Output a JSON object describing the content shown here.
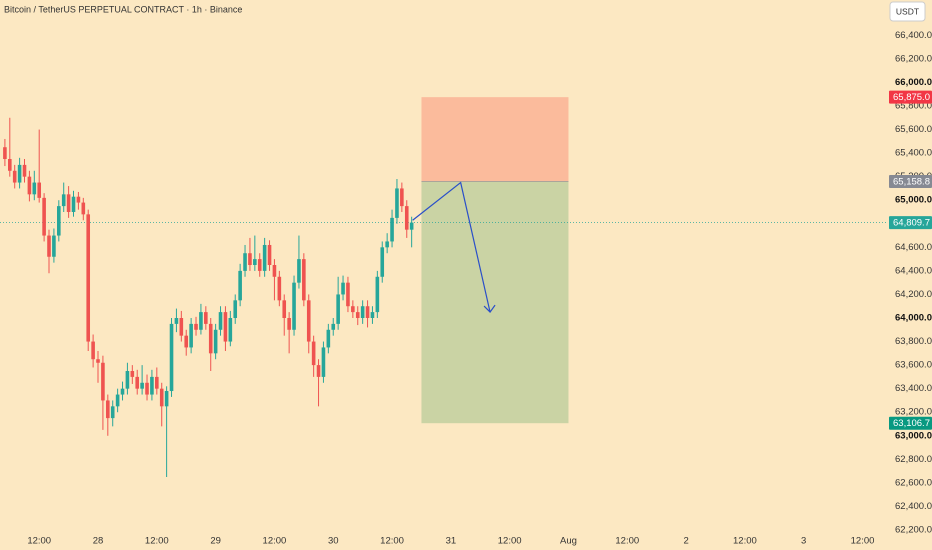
{
  "chart_data": {
    "type": "candlestick",
    "title": "Bitcoin / TetherUS PERPETUAL CONTRACT · 1h · Binance",
    "currency_button": "USDT",
    "up_color": "#26a69a",
    "down_color": "#ef5350",
    "xlim": [
      -20,
      161.2
    ],
    "ylim": [
      62200,
      66700
    ],
    "xticks": [
      {
        "value": -12,
        "label": "12:00"
      },
      {
        "value": 0,
        "label": "28"
      },
      {
        "value": 12,
        "label": "12:00"
      },
      {
        "value": 24,
        "label": "29"
      },
      {
        "value": 36,
        "label": "12:00"
      },
      {
        "value": 48,
        "label": "30"
      },
      {
        "value": 60,
        "label": "12:00"
      },
      {
        "value": 72,
        "label": "31"
      },
      {
        "value": 84,
        "label": "12:00"
      },
      {
        "value": 96,
        "label": "Aug"
      },
      {
        "value": 108,
        "label": "12:00"
      },
      {
        "value": 120,
        "label": "2"
      },
      {
        "value": 132,
        "label": "12:00"
      },
      {
        "value": 144,
        "label": "3"
      },
      {
        "value": 156,
        "label": "12:00"
      }
    ],
    "yticks": [
      {
        "value": 62200,
        "label": "62,200.0"
      },
      {
        "value": 62400,
        "label": "62,400.0"
      },
      {
        "value": 62600,
        "label": "62,600.0"
      },
      {
        "value": 62800,
        "label": "62,800.0"
      },
      {
        "value": 63000,
        "label": "63,000.0"
      },
      {
        "value": 63200,
        "label": "63,200.0"
      },
      {
        "value": 63400,
        "label": "63,400.0"
      },
      {
        "value": 63600,
        "label": "63,600.0"
      },
      {
        "value": 63800,
        "label": "63,800.0"
      },
      {
        "value": 64000,
        "label": "64,000.0"
      },
      {
        "value": 64200,
        "label": "64,200.0"
      },
      {
        "value": 64400,
        "label": "64,400.0"
      },
      {
        "value": 64600,
        "label": "64,600.0"
      },
      {
        "value": 64800,
        "label": "64,800.0"
      },
      {
        "value": 65000,
        "label": "65,000.0"
      },
      {
        "value": 65200,
        "label": "65,200.0"
      },
      {
        "value": 65400,
        "label": "65,400.0"
      },
      {
        "value": 65600,
        "label": "65,600.0"
      },
      {
        "value": 65800,
        "label": "65,800.0"
      },
      {
        "value": 66000,
        "label": "66,000.0"
      },
      {
        "value": 66200,
        "label": "66,200.0"
      },
      {
        "value": 66400,
        "label": "66,400.0"
      }
    ],
    "x": [
      -19,
      -18,
      -17,
      -16,
      -15,
      -14,
      -13,
      -12,
      -11,
      -10,
      -9,
      -8,
      -7,
      -6,
      -5,
      -4,
      -3,
      -2,
      -1,
      0,
      1,
      2,
      3,
      4,
      5,
      6,
      7,
      8,
      9,
      10,
      11,
      12,
      13,
      14,
      15,
      16,
      17,
      18,
      19,
      20,
      21,
      22,
      23,
      24,
      25,
      26,
      27,
      28,
      29,
      30,
      31,
      32,
      33,
      34,
      35,
      36,
      37,
      38,
      39,
      40,
      41,
      42,
      43,
      44,
      45,
      46,
      47,
      48,
      49,
      50,
      51,
      52,
      53,
      54,
      55,
      56,
      57,
      58,
      59,
      60,
      61,
      62,
      63,
      64
    ],
    "open": [
      65450,
      65350,
      65250,
      65150,
      65300,
      65200,
      65050,
      65150,
      65020,
      64700,
      64520,
      64700,
      64950,
      65050,
      64900,
      65030,
      64980,
      64880,
      63800,
      63650,
      63620,
      63300,
      63150,
      63250,
      63350,
      63400,
      63550,
      63500,
      63400,
      63450,
      63350,
      63500,
      63400,
      63250,
      63380,
      63950,
      64000,
      63850,
      63750,
      63950,
      63900,
      64050,
      63950,
      63700,
      63900,
      64050,
      63800,
      64000,
      64150,
      64400,
      64550,
      64450,
      64500,
      64400,
      64620,
      64450,
      64350,
      64150,
      64000,
      63900,
      64300,
      64500,
      64150,
      63800,
      63600,
      63500,
      63750,
      63900,
      63950,
      64200,
      64300,
      64100,
      64050,
      64000,
      64100,
      64000,
      64050,
      64350,
      64600,
      64650,
      64850,
      65100,
      64950,
      64750
    ],
    "high": [
      65520,
      65700,
      65300,
      65360,
      65350,
      65250,
      65250,
      65600,
      65060,
      64750,
      64760,
      65000,
      65150,
      65120,
      65080,
      65070,
      65020,
      64920,
      63860,
      63720,
      63680,
      63350,
      63300,
      63400,
      63460,
      63620,
      63600,
      63560,
      63600,
      63520,
      63560,
      63580,
      63450,
      63420,
      64000,
      64080,
      64060,
      63900,
      64000,
      64010,
      64120,
      64100,
      64000,
      63950,
      64100,
      64100,
      64060,
      64200,
      64460,
      64620,
      64680,
      64700,
      64550,
      64680,
      64660,
      64500,
      64400,
      64200,
      64050,
      64360,
      64700,
      64550,
      64200,
      63850,
      63650,
      63800,
      63950,
      64000,
      64350,
      64360,
      64350,
      64150,
      64100,
      64150,
      64150,
      64100,
      64400,
      64650,
      64720,
      64920,
      65180,
      65150,
      65000,
      64860
    ],
    "low": [
      65290,
      65200,
      65100,
      65100,
      65150,
      64990,
      65000,
      64980,
      64650,
      64380,
      64470,
      64650,
      64900,
      64850,
      64860,
      64920,
      64830,
      63720,
      63580,
      63450,
      63050,
      63000,
      63080,
      63200,
      63300,
      63350,
      63440,
      63350,
      63350,
      63300,
      63300,
      63350,
      63080,
      62650,
      63330,
      63880,
      63800,
      63680,
      63700,
      63850,
      63860,
      63900,
      63550,
      63650,
      63850,
      63720,
      63760,
      63950,
      64100,
      64350,
      64400,
      64400,
      64350,
      64350,
      64400,
      64150,
      64100,
      63850,
      63700,
      63850,
      64250,
      64100,
      63700,
      63500,
      63250,
      63450,
      63700,
      63850,
      63900,
      64150,
      64050,
      64000,
      63940,
      63950,
      63920,
      63950,
      64000,
      64300,
      64550,
      64600,
      64800,
      64900,
      64680,
      64600
    ],
    "close": [
      65350,
      65250,
      65150,
      65300,
      65200,
      65050,
      65150,
      65020,
      64700,
      64520,
      64700,
      64950,
      65050,
      64900,
      65030,
      64980,
      64880,
      63800,
      63650,
      63620,
      63300,
      63150,
      63250,
      63350,
      63400,
      63550,
      63500,
      63400,
      63450,
      63350,
      63500,
      63400,
      63250,
      63380,
      63950,
      64000,
      63850,
      63750,
      63950,
      63900,
      64050,
      63950,
      63700,
      63900,
      64050,
      63800,
      64000,
      64150,
      64400,
      64550,
      64450,
      64500,
      64400,
      64620,
      64450,
      64350,
      64150,
      64000,
      63900,
      64300,
      64500,
      64150,
      63800,
      63600,
      63500,
      63750,
      63900,
      63950,
      64200,
      64300,
      64100,
      64050,
      64000,
      64100,
      64000,
      64050,
      64350,
      64600,
      64650,
      64850,
      65100,
      64950,
      64750,
      64810
    ],
    "last_price": {
      "value": 64809.7,
      "label": "64,809.7"
    },
    "position": {
      "start": 66,
      "end": 96,
      "stop": {
        "value": 65875,
        "label": "65,875.0"
      },
      "entry": {
        "value": 65158.8,
        "label": "65,158.8"
      },
      "target": {
        "value": 63106.7,
        "label": "63,106.7"
      }
    },
    "arrow": {
      "x": [
        64.2,
        74,
        80
      ],
      "y": [
        64830,
        65150,
        64050
      ]
    }
  }
}
